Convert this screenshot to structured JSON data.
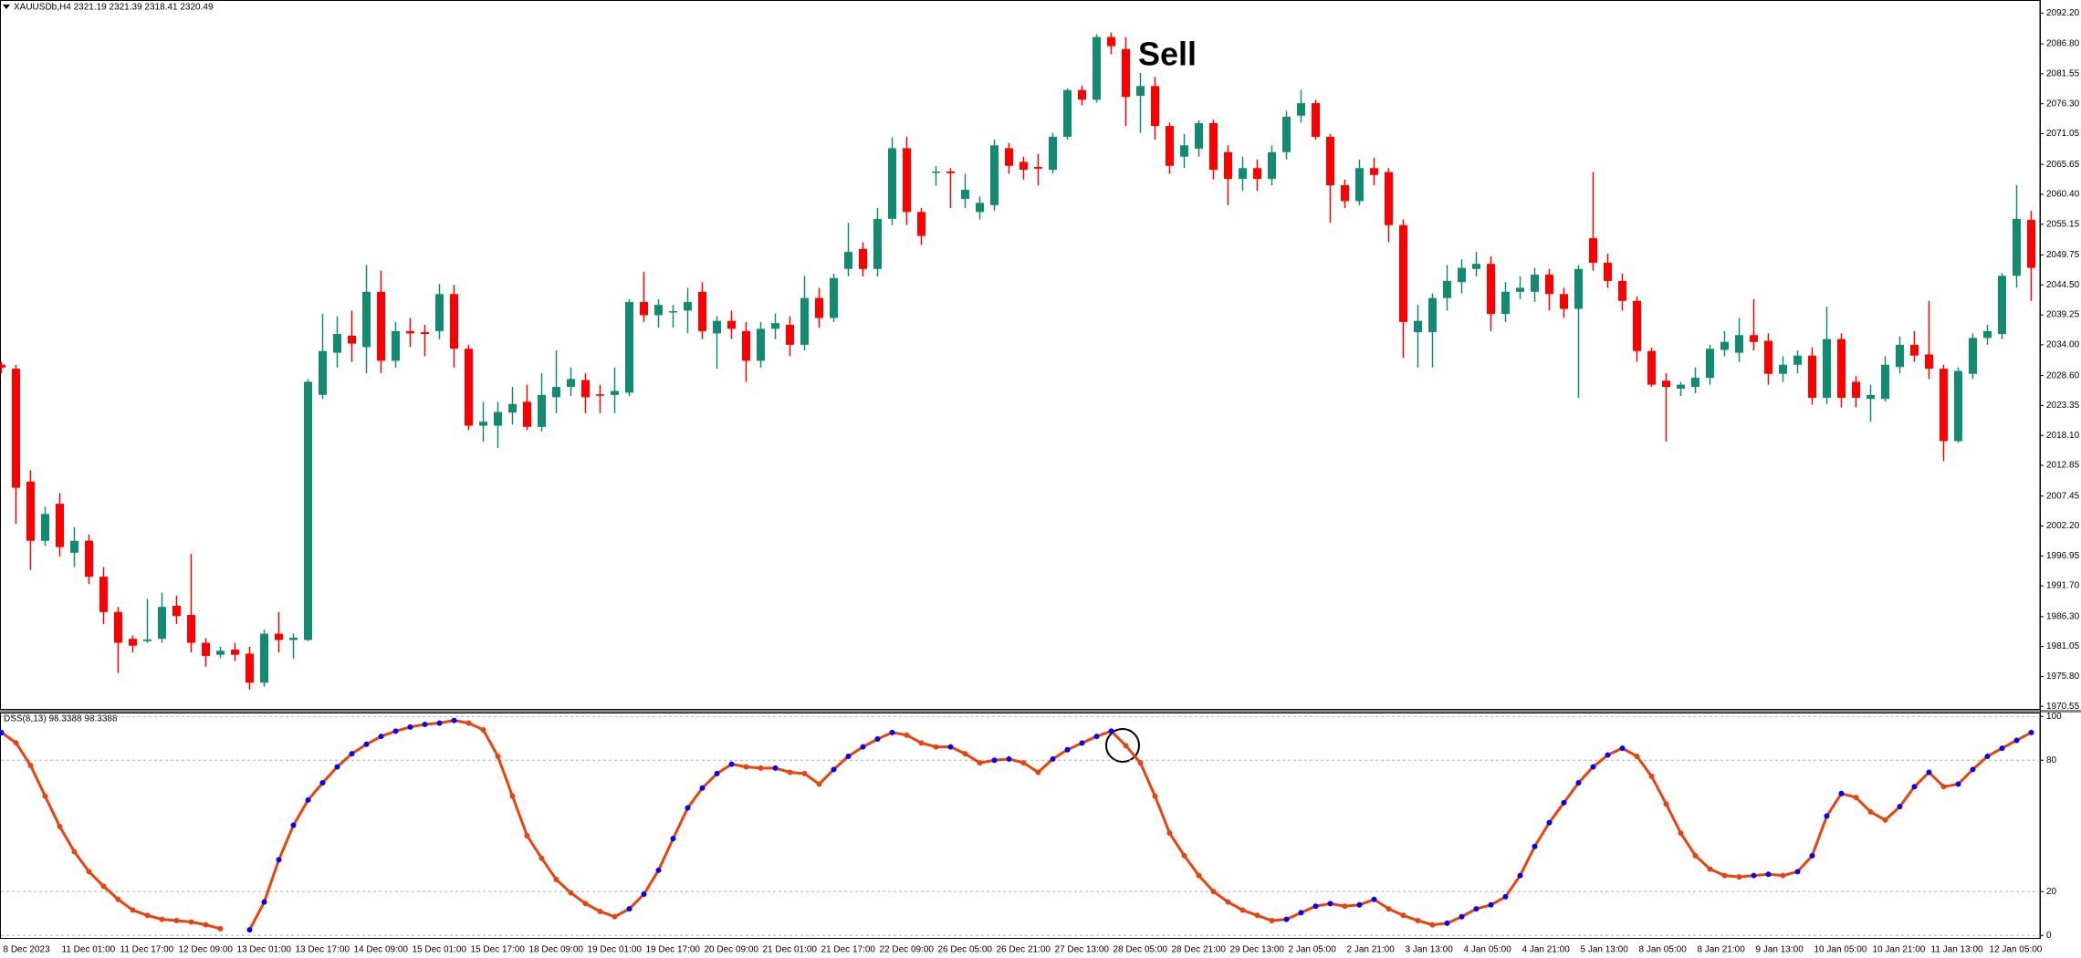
{
  "chart_data": [
    {
      "type": "candlestick",
      "title": "XAUUSDb,H4 2321.19 2321.39 2318.41 2320.49",
      "annotation": "Sell",
      "up_color": "#138a72",
      "down_color": "#ff0000",
      "categories": [
        "8 Dec 2023",
        null,
        null,
        null,
        "11 Dec 01:00",
        null,
        null,
        null,
        "11 Dec 17:00",
        null,
        null,
        null,
        "12 Dec 09:00",
        null,
        null,
        null,
        "13 Dec 01:00",
        null,
        null,
        null,
        "13 Dec 17:00",
        null,
        null,
        null,
        "14 Dec 09:00",
        null,
        null,
        null,
        "15 Dec 01:00",
        null,
        null,
        null,
        "15 Dec 17:00",
        null,
        null,
        null,
        "18 Dec 09:00",
        null,
        null,
        null,
        "19 Dec 01:00",
        null,
        null,
        null,
        "19 Dec 17:00",
        null,
        null,
        null,
        "20 Dec 09:00",
        null,
        null,
        null,
        "21 Dec 01:00",
        null,
        null,
        null,
        "21 Dec 17:00",
        null,
        null,
        null,
        "22 Dec 09:00",
        null,
        null,
        null,
        "26 Dec 05:00",
        null,
        null,
        null,
        "26 Dec 21:00",
        null,
        null,
        null,
        "27 Dec 13:00",
        null,
        null,
        null,
        "28 Dec 05:00",
        null,
        null,
        null,
        "28 Dec 21:00",
        null,
        null,
        null,
        "29 Dec 13:00",
        null,
        null,
        null,
        "2 Jan 05:00",
        null,
        null,
        null,
        "2 Jan 21:00",
        null,
        null,
        null,
        "3 Jan 13:00",
        null,
        null,
        null,
        "4 Jan 05:00",
        null,
        null,
        null,
        "4 Jan 21:00",
        null,
        null,
        null,
        "5 Jan 13:00",
        null,
        null,
        null,
        "8 Jan 05:00",
        null,
        null,
        null,
        "8 Jan 21:00",
        null,
        null,
        null,
        "9 Jan 13:00",
        null,
        null,
        null,
        "10 Jan 05:00",
        null,
        null,
        null,
        "10 Jan 21:00",
        null,
        null,
        null,
        "11 Jan 13:00",
        null,
        null,
        null,
        "12 Jan 05:00",
        null,
        null,
        null
      ],
      "open": [
        2030.5,
        2029.8,
        2010,
        1999.6,
        2006.1,
        1997.5,
        1999.6,
        1993.3,
        1987.1,
        1982.4,
        1982,
        1982.4,
        1988.2,
        1986.6,
        1981.7,
        1979.6,
        1980.5,
        1979.8,
        1974.7,
        1983.3,
        1982.2,
        1982.2,
        2025.2,
        2032.6,
        2035.6,
        2033.6,
        2043.3,
        2031.2,
        2036.4,
        2036.2,
        2036.4,
        2042.9,
        2033.3,
        2019.8,
        2019.8,
        2022.1,
        2024,
        2019.6,
        2024.8,
        2026.6,
        2027.8,
        2025.3,
        2025.2,
        2025.6,
        2041.5,
        2039.2,
        2039.8,
        2040,
        2043.3,
        2036,
        2038.2,
        2036.4,
        2031.2,
        2036.8,
        2037.5,
        2034,
        2042.2,
        2038.7,
        2047.3,
        2050.8,
        2047.3,
        2056.1,
        2068.5,
        2057.3,
        2064.2,
        2064.4,
        2059.6,
        2057.3,
        2058.5,
        2068.5,
        2066.1,
        2065.2,
        2064.7,
        2070.5,
        2078.7,
        2077,
        2088,
        2085.9,
        2077.7,
        2079.4,
        2072.4,
        2067,
        2068.4,
        2072.9,
        2067.8,
        2063.1,
        2065,
        2063.1,
        2067.8,
        2074.2,
        2076.4,
        2070.5,
        2062,
        2059.2,
        2065,
        2064.3,
        2055,
        2036.2,
        2036.2,
        2042.2,
        2045,
        2047.3,
        2048.2,
        2039.4,
        2043.3,
        2043.3,
        2046.3,
        2042.9,
        2040.3,
        2052.7,
        2048.4,
        2045.2,
        2041.7,
        2032.9,
        2027.7,
        2026.3,
        2026.6,
        2028.2,
        2033.1,
        2032.6,
        2035.7,
        2034.7,
        2028.9,
        2030.5,
        2032.1,
        2024.7,
        2035,
        2027.5,
        2024.5,
        2024.5,
        2030.1,
        2034,
        2032.3,
        2029.8,
        2017.1,
        2028.9,
        2035.2,
        2035.9,
        2046.1,
        2055.9
      ],
      "high": [
        2031,
        2030.5,
        2012,
        2005.6,
        2008,
        2002,
        2000.7,
        1995,
        1988,
        1983,
        1989.4,
        1990.5,
        1990,
        1997.3,
        1982.5,
        1981,
        1981.7,
        1981,
        1984,
        1987.1,
        1983.3,
        2028,
        2039.4,
        2039,
        2040,
        2048,
        2047,
        2038,
        2038.7,
        2037.5,
        2044.7,
        2044.5,
        2034,
        2024,
        2024,
        2026.6,
        2027,
        2029,
        2033,
        2030,
        2029,
        2027,
        2030,
        2042,
        2046.8,
        2042,
        2041,
        2044,
        2045,
        2039,
        2040,
        2038,
        2038,
        2039.5,
        2039,
        2046.1,
        2044,
        2046.5,
        2055.4,
        2052,
        2058,
        2070.4,
        2070.5,
        2058,
        2065.4,
        2065,
        2064,
        2060,
        2070,
        2069.4,
        2067,
        2067.5,
        2071.2,
        2079,
        2079.5,
        2088.5,
        2088.8,
        2088,
        2081.7,
        2081,
        2073,
        2071,
        2073.4,
        2073.5,
        2069,
        2067,
        2066.5,
        2069,
        2075,
        2078.7,
        2077,
        2071,
        2063,
        2066.5,
        2066.8,
        2065,
        2056,
        2041,
        2043,
        2048,
        2049,
        2050.3,
        2049.5,
        2045,
        2046,
        2047.5,
        2047.3,
        2044,
        2048,
        2064.3,
        2050,
        2046.5,
        2042.5,
        2033.5,
        2029,
        2027.5,
        2030,
        2034,
        2036.4,
        2038.7,
        2042,
        2036,
        2032,
        2033,
        2033.5,
        2040.7,
        2036,
        2028.5,
        2027,
        2032,
        2035.5,
        2036.4,
        2041.7,
        2030.5,
        2030,
        2036,
        2037.5,
        2046.6,
        2062,
        2057.5
      ],
      "low": [
        2029,
        2002.6,
        1994.5,
        1998.7,
        1996.8,
        1995,
        1992,
        1985,
        1976.4,
        1980,
        1981.7,
        1981.7,
        1985,
        1980,
        1977.5,
        1979,
        1978.5,
        1973.5,
        1974,
        1980,
        1978.9,
        1982,
        2024.5,
        2030,
        2031,
        2029,
        2029,
        2030,
        2033.6,
        2032,
        2035,
        2030,
        2019,
        2017,
        2015.9,
        2020,
        2019,
        2018.8,
        2022,
        2025,
        2022,
        2022,
        2022,
        2025,
        2038,
        2037,
        2037,
        2036,
        2035,
        2029.8,
        2035,
        2027.5,
        2030,
        2035,
        2032,
        2033,
        2037,
        2038,
        2046,
        2046,
        2046,
        2055,
        2055,
        2051.5,
        2061.9,
        2058,
        2058,
        2056,
        2057.5,
        2064,
        2063,
        2062,
        2064,
        2070,
        2076,
        2076.5,
        2085,
        2072.4,
        2071.2,
        2070,
        2064,
        2065,
        2067,
        2063,
        2058.5,
        2061,
        2061,
        2062,
        2066.5,
        2073,
        2070,
        2055.4,
        2058,
        2058.5,
        2062,
        2052,
        2031.7,
        2030,
        2030,
        2040,
        2043,
        2046,
        2036.4,
        2038,
        2042,
        2041.5,
        2040,
        2038.7,
        2024.7,
        2047,
        2044,
        2040,
        2031,
        2026.6,
        2017,
        2025,
        2025.5,
        2027,
        2032,
        2031,
        2033,
        2027,
        2027.5,
        2029,
        2023.5,
        2023.6,
        2023,
        2023,
        2020.5,
        2024,
        2029,
        2031,
        2028,
        2013.6,
        2016.8,
        2028,
        2034,
        2035,
        2044,
        2041.7
      ],
      "close": [
        2030,
        2008.9,
        1999.6,
        2004.3,
        1998.5,
        1999.6,
        1993.3,
        1987.1,
        1981.7,
        1981.2,
        1982.3,
        1988,
        1986.4,
        1981.7,
        1979.4,
        1980.3,
        1979.6,
        1974.7,
        1983.3,
        1982.2,
        1982.6,
        2027.5,
        2032.9,
        2035.9,
        2034.2,
        2043.3,
        2031.2,
        2036.4,
        2036,
        2035.9,
        2042.9,
        2033.3,
        2019.8,
        2020.5,
        2022.2,
        2023.6,
        2019.6,
        2025.2,
        2026.6,
        2028,
        2024.8,
        2025.2,
        2025.9,
        2041.5,
        2039.2,
        2041,
        2039.9,
        2041.5,
        2036.4,
        2038.2,
        2036.8,
        2031.2,
        2036.8,
        2037.8,
        2034,
        2042.2,
        2038.7,
        2045.7,
        2050.3,
        2047.3,
        2056.1,
        2068.5,
        2057.3,
        2053.1,
        2064.4,
        2064.1,
        2061.2,
        2058.9,
        2069,
        2065.4,
        2064.7,
        2064.9,
        2070.5,
        2078.7,
        2077,
        2088,
        2086.4,
        2077.5,
        2079.4,
        2072.4,
        2065.4,
        2069,
        2072.9,
        2064.7,
        2063.1,
        2065,
        2063.1,
        2067.8,
        2074,
        2076.4,
        2070.5,
        2062,
        2059.2,
        2065,
        2063.8,
        2055,
        2038,
        2038.2,
        2042.2,
        2045.2,
        2047.5,
        2048.2,
        2039.4,
        2043.3,
        2044,
        2046.3,
        2042.9,
        2040.3,
        2047.3,
        2048.4,
        2045.2,
        2041.7,
        2032.9,
        2027,
        2026.6,
        2027,
        2028.2,
        2033.3,
        2034.5,
        2035.7,
        2034.5,
        2028.9,
        2030.5,
        2032.1,
        2024.7,
        2035,
        2024.7,
        2024.7,
        2025.2,
        2030.5,
        2034,
        2032.1,
        2029.8,
        2017.1,
        2029.4,
        2035.2,
        2036.4,
        2046.1,
        2056.1,
        2047.5
      ],
      "ylim": [
        1970.1,
        2094.5
      ],
      "yticks": [
        {
          "value": 2092.2,
          "label": "2092.20"
        },
        {
          "value": 2086.8,
          "label": "2086.80"
        },
        {
          "value": 2081.55,
          "label": "2081.55"
        },
        {
          "value": 2076.3,
          "label": "2076.30"
        },
        {
          "value": 2071.05,
          "label": "2071.05"
        },
        {
          "value": 2065.65,
          "label": "2065.65"
        },
        {
          "value": 2060.4,
          "label": "2060.40"
        },
        {
          "value": 2055.15,
          "label": "2055.15"
        },
        {
          "value": 2049.75,
          "label": "2049.75"
        },
        {
          "value": 2044.5,
          "label": "2044.50"
        },
        {
          "value": 2039.25,
          "label": "2039.25"
        },
        {
          "value": 2034,
          "label": "2034.00"
        },
        {
          "value": 2028.6,
          "label": "2028.60"
        },
        {
          "value": 2023.35,
          "label": "2023.35"
        },
        {
          "value": 2018.1,
          "label": "2018.10"
        },
        {
          "value": 2012.85,
          "label": "2012.85"
        },
        {
          "value": 2007.45,
          "label": "2007.45"
        },
        {
          "value": 2002.2,
          "label": "2002.20"
        },
        {
          "value": 1996.95,
          "label": "1996.95"
        },
        {
          "value": 1991.7,
          "label": "1991.70"
        },
        {
          "value": 1986.3,
          "label": "1986.30"
        },
        {
          "value": 1981.05,
          "label": "1981.05"
        },
        {
          "value": 1975.8,
          "label": "1975.80"
        },
        {
          "value": 1970.55,
          "label": "1970.55"
        }
      ]
    },
    {
      "type": "line",
      "title": "DSS(8,13) 98.3388 98.3388",
      "color": "#e8430c",
      "up_color": "#0000ff",
      "down_color": "#e8430c",
      "values": [
        92.7,
        88,
        77.6,
        63.6,
        49.7,
        38.2,
        29.1,
        22.4,
        16.4,
        11.5,
        9.1,
        7.3,
        6.7,
        6.1,
        4.8,
        3,
        null,
        2.5,
        15.2,
        34.5,
        50.3,
        61.8,
        69.7,
        77,
        83,
        87.3,
        90.9,
        93.3,
        95.2,
        96.4,
        97,
        98.2,
        97,
        93.9,
        81.8,
        63.6,
        45.5,
        35.2,
        25.5,
        19.4,
        14.5,
        10.9,
        8.5,
        12.1,
        18.8,
        29.7,
        44.2,
        58.2,
        67.3,
        73.9,
        78.2,
        77,
        76.4,
        76.4,
        74.5,
        73.9,
        69.1,
        75.8,
        81.8,
        86.1,
        89.7,
        92.7,
        91.5,
        87.9,
        86.1,
        86.1,
        83,
        78.8,
        80,
        80.6,
        78.8,
        74.5,
        80.6,
        84.8,
        87.9,
        90.9,
        93.3,
        86.7,
        78.8,
        63.6,
        46.7,
        36.4,
        27.3,
        20,
        15.2,
        11.5,
        9.1,
        6.7,
        7.3,
        10.3,
        13.3,
        14.5,
        13.3,
        13.9,
        16.4,
        12.1,
        9.1,
        6.7,
        4.8,
        5.5,
        8.5,
        12.1,
        13.9,
        17.6,
        27.3,
        40.6,
        51.5,
        60.6,
        69.7,
        77,
        82.4,
        85.5,
        81.8,
        72.7,
        60,
        46.7,
        36.4,
        30.3,
        27.3,
        26.7,
        27.3,
        27.9,
        27.3,
        29.1,
        36.4,
        54.5,
        64.8,
        63,
        56.4,
        52.7,
        58.8,
        67.9,
        74.5,
        67.9,
        69.1,
        75.8,
        81.8,
        85.5,
        89.1,
        92.7
      ],
      "ylim": [
        -1.2,
        101.8
      ],
      "yticks": [
        100,
        80,
        20,
        0
      ],
      "grid": true
    }
  ]
}
